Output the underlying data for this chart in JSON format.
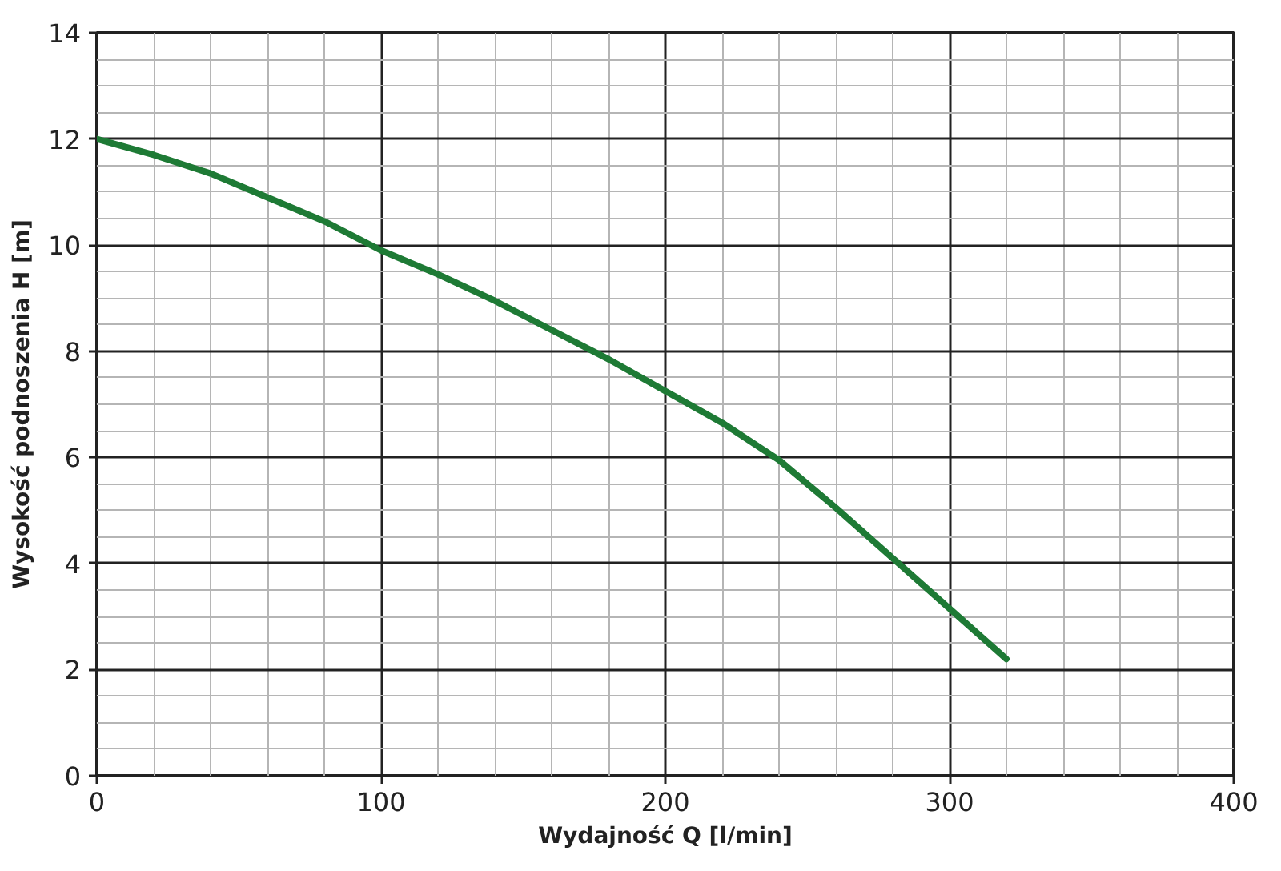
{
  "chart_data": {
    "type": "line",
    "xlabel": "Wydajność Q [l/min]",
    "ylabel": "Wysokość podnoszenia H [m]",
    "x": [
      0,
      20,
      40,
      60,
      80,
      100,
      120,
      140,
      160,
      180,
      200,
      220,
      240,
      260,
      280,
      300,
      320
    ],
    "series": [
      {
        "color": "#1e7a35",
        "values": [
          12,
          11.7,
          11.35,
          10.9,
          10.45,
          9.9,
          9.45,
          8.95,
          8.4,
          7.85,
          7.25,
          6.65,
          5.95,
          5.05,
          4.1,
          3.15,
          2.2
        ]
      }
    ],
    "xlim": [
      0,
      400
    ],
    "ylim": [
      0,
      14
    ],
    "xticks": [
      0,
      100,
      200,
      300,
      400
    ],
    "yticks": [
      0,
      2,
      4,
      6,
      8,
      10,
      12,
      14
    ],
    "grid": true,
    "line_style": "solid",
    "marker": "none"
  }
}
